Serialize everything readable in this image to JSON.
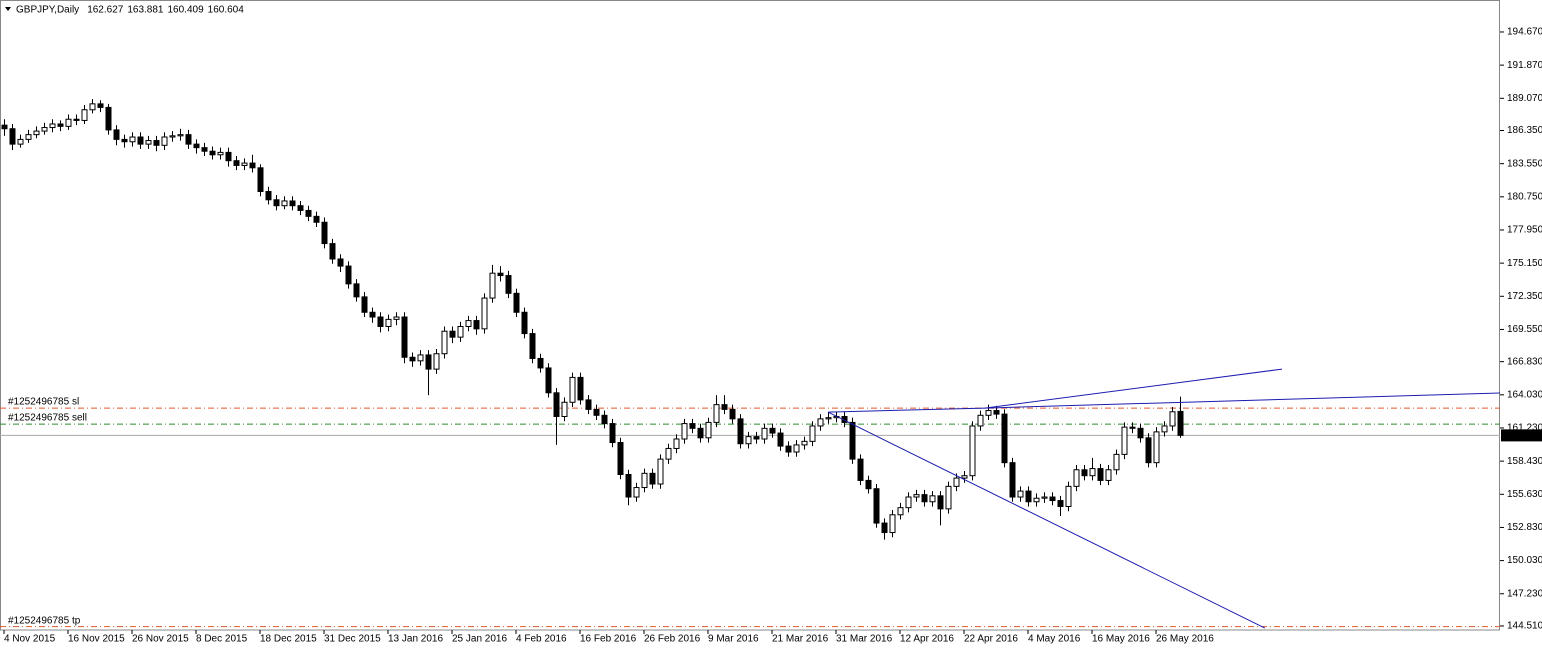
{
  "chart_data": {
    "type": "candlestick",
    "title": "GBPJPY,Daily",
    "color": "#000000",
    "ylim": [
      144.17,
      197.37
    ],
    "yticks": [
      {
        "value": 194.67,
        "label": "194.670"
      },
      {
        "value": 191.87,
        "label": "191.870"
      },
      {
        "value": 189.07,
        "label": "189.070"
      },
      {
        "value": 186.35,
        "label": "186.350"
      },
      {
        "value": 183.55,
        "label": "183.550"
      },
      {
        "value": 180.75,
        "label": "180.750"
      },
      {
        "value": 177.95,
        "label": "177.950"
      },
      {
        "value": 175.15,
        "label": "175.150"
      },
      {
        "value": 172.35,
        "label": "172.350"
      },
      {
        "value": 169.55,
        "label": "169.550"
      },
      {
        "value": 166.83,
        "label": "166.830"
      },
      {
        "value": 164.03,
        "label": "164.030"
      },
      {
        "value": 161.23,
        "label": "161.230"
      },
      {
        "value": 158.43,
        "label": "158.430"
      },
      {
        "value": 155.63,
        "label": "155.630"
      },
      {
        "value": 152.83,
        "label": "152.830"
      },
      {
        "value": 150.03,
        "label": "150.030"
      },
      {
        "value": 147.23,
        "label": "147.230"
      },
      {
        "value": 144.51,
        "label": "144.510"
      }
    ],
    "grid": false,
    "categories": [
      "4 Nov 2015",
      null,
      null,
      null,
      null,
      null,
      null,
      null,
      "16 Nov 2015",
      null,
      null,
      null,
      null,
      null,
      null,
      null,
      "26 Nov 2015",
      null,
      null,
      null,
      null,
      null,
      null,
      null,
      "8 Dec 2015",
      null,
      null,
      null,
      null,
      null,
      null,
      null,
      "18 Dec 2015",
      null,
      null,
      null,
      null,
      null,
      null,
      null,
      "31 Dec 2015",
      null,
      null,
      null,
      null,
      null,
      null,
      null,
      "13 Jan 2016",
      null,
      null,
      null,
      null,
      null,
      null,
      null,
      "25 Jan 2016",
      null,
      null,
      null,
      null,
      null,
      null,
      null,
      "4 Feb 2016",
      null,
      null,
      null,
      null,
      null,
      null,
      null,
      "16 Feb 2016",
      null,
      null,
      null,
      null,
      null,
      null,
      null,
      "26 Feb 2016",
      null,
      null,
      null,
      null,
      null,
      null,
      null,
      "9 Mar 2016",
      null,
      null,
      null,
      null,
      null,
      null,
      null,
      "21 Mar 2016",
      null,
      null,
      null,
      null,
      null,
      null,
      null,
      "31 Mar 2016",
      null,
      null,
      null,
      null,
      null,
      null,
      null,
      "12 Apr 2016",
      null,
      null,
      null,
      null,
      null,
      null,
      null,
      "22 Apr 2016",
      null,
      null,
      null,
      null,
      null,
      null,
      null,
      "4 May 2016",
      null,
      null,
      null,
      null,
      null,
      null,
      null,
      "16 May 2016",
      null,
      null,
      null,
      null,
      null,
      null,
      null,
      "26 May 2016",
      null,
      null,
      null
    ],
    "open": [
      186.8,
      186.5,
      185.2,
      185.6,
      186.0,
      186.3,
      186.6,
      186.9,
      186.7,
      187.3,
      187.2,
      188.1,
      188.6,
      188.3,
      186.4,
      185.6,
      185.4,
      185.8,
      185.2,
      185.5,
      185.1,
      185.8,
      185.9,
      186.0,
      185.2,
      184.9,
      184.6,
      184.3,
      184.5,
      183.8,
      183.4,
      183.6,
      183.2,
      181.2,
      180.5,
      180.0,
      180.4,
      180.0,
      179.6,
      179.1,
      178.6,
      176.8,
      175.5,
      174.9,
      173.4,
      172.3,
      171.0,
      170.6,
      169.8,
      170.4,
      170.6,
      167.2,
      166.9,
      167.4,
      166.2,
      167.5,
      169.4,
      168.9,
      169.8,
      170.3,
      169.6,
      172.2,
      174.3,
      174.1,
      172.6,
      171.0,
      169.2,
      167.1,
      166.3,
      164.2,
      162.2,
      163.4,
      165.5,
      163.6,
      162.8,
      162.3,
      161.6,
      160.0,
      157.3,
      155.4,
      156.2,
      157.4,
      156.5,
      158.6,
      159.5,
      160.3,
      161.6,
      161.2,
      160.4,
      161.7,
      163.2,
      162.8,
      162.0,
      159.9,
      160.5,
      160.3,
      161.2,
      160.8,
      159.7,
      159.2,
      159.8,
      160.1,
      161.4,
      162.0,
      162.1,
      162.2,
      161.7,
      158.6,
      156.8,
      156.1,
      153.2,
      152.4,
      153.9,
      154.5,
      155.4,
      155.6,
      155.0,
      155.5,
      154.4,
      156.3,
      157.0,
      157.2,
      161.4,
      162.3,
      162.7,
      162.4,
      158.3,
      155.4,
      155.9,
      155.0,
      155.3,
      155.4,
      155.1,
      154.6,
      156.3,
      157.7,
      157.2,
      157.8,
      156.8,
      157.7,
      159.0,
      161.3,
      161.2,
      160.4,
      158.3,
      160.9,
      161.4,
      162.627
    ],
    "high": [
      187.3,
      186.9,
      186.0,
      186.4,
      186.7,
      187.0,
      187.3,
      187.2,
      187.7,
      187.7,
      188.5,
      189.0,
      188.9,
      188.6,
      186.8,
      186.0,
      186.2,
      186.2,
      185.9,
      185.9,
      186.2,
      186.3,
      186.5,
      186.4,
      185.6,
      185.3,
      185.0,
      184.9,
      184.9,
      184.2,
      184.0,
      184.3,
      183.5,
      181.6,
      180.9,
      180.8,
      180.8,
      180.4,
      180.0,
      179.5,
      179.0,
      177.2,
      175.9,
      175.3,
      173.8,
      172.7,
      171.4,
      171.0,
      170.8,
      171.0,
      171.0,
      167.6,
      167.8,
      167.8,
      167.9,
      169.8,
      169.8,
      170.2,
      170.7,
      170.7,
      172.6,
      175.0,
      174.9,
      174.5,
      173.0,
      171.4,
      169.6,
      167.5,
      166.7,
      164.6,
      163.8,
      165.9,
      165.9,
      164.0,
      163.2,
      162.7,
      162.0,
      160.4,
      157.7,
      156.6,
      157.8,
      157.8,
      159.0,
      159.9,
      160.7,
      162.0,
      162.0,
      161.6,
      162.1,
      164.0,
      164.0,
      163.2,
      162.4,
      160.9,
      160.9,
      161.6,
      161.6,
      161.2,
      160.1,
      160.2,
      160.5,
      161.8,
      162.4,
      162.6,
      162.6,
      162.6,
      162.1,
      159.0,
      157.2,
      156.5,
      153.6,
      154.3,
      154.9,
      155.8,
      156.0,
      156.0,
      155.9,
      155.9,
      156.7,
      157.4,
      157.6,
      161.8,
      162.7,
      163.2,
      163.1,
      162.8,
      158.7,
      156.3,
      156.3,
      155.7,
      155.8,
      155.8,
      155.5,
      156.7,
      158.1,
      158.1,
      158.7,
      158.2,
      158.1,
      159.4,
      161.7,
      161.7,
      161.6,
      160.8,
      161.3,
      161.8,
      163.0,
      163.881
    ],
    "low": [
      185.9,
      184.7,
      184.9,
      185.3,
      185.7,
      186.0,
      186.2,
      186.3,
      186.4,
      186.8,
      186.9,
      187.8,
      187.9,
      186.0,
      185.1,
      184.9,
      185.0,
      184.8,
      184.8,
      184.6,
      184.7,
      185.4,
      185.5,
      184.8,
      184.4,
      184.2,
      183.9,
      183.9,
      183.3,
      183.0,
      183.0,
      182.8,
      180.8,
      180.1,
      179.6,
      179.7,
      179.6,
      179.2,
      178.7,
      178.2,
      176.4,
      175.1,
      174.4,
      173.0,
      171.9,
      170.6,
      170.1,
      169.3,
      169.4,
      169.9,
      166.7,
      166.4,
      166.5,
      164.0,
      165.8,
      167.1,
      168.4,
      168.5,
      169.4,
      169.1,
      169.2,
      171.8,
      173.6,
      172.2,
      170.6,
      168.8,
      166.7,
      165.9,
      163.8,
      159.8,
      161.8,
      163.0,
      163.2,
      162.4,
      161.9,
      161.2,
      159.6,
      156.9,
      154.7,
      155.0,
      155.8,
      156.1,
      156.1,
      158.2,
      159.1,
      159.9,
      160.8,
      160.0,
      160.0,
      161.3,
      162.4,
      161.6,
      159.5,
      159.5,
      159.9,
      159.9,
      160.4,
      159.3,
      158.8,
      158.8,
      159.4,
      159.7,
      161.0,
      161.6,
      161.7,
      161.3,
      158.2,
      156.4,
      155.7,
      152.8,
      151.8,
      152.0,
      153.5,
      154.1,
      155.0,
      154.6,
      154.6,
      153.0,
      154.0,
      155.9,
      156.6,
      156.8,
      161.0,
      161.9,
      162.0,
      157.9,
      155.0,
      155.0,
      154.6,
      154.6,
      154.9,
      154.7,
      153.8,
      154.2,
      155.9,
      156.8,
      156.8,
      156.4,
      156.4,
      157.3,
      158.6,
      160.8,
      160.0,
      157.9,
      157.9,
      160.5,
      161.0,
      160.409
    ],
    "close": [
      186.5,
      185.2,
      185.6,
      186.0,
      186.3,
      186.6,
      186.9,
      186.7,
      187.3,
      187.2,
      188.1,
      188.6,
      188.3,
      186.4,
      185.6,
      185.4,
      185.8,
      185.2,
      185.5,
      185.1,
      185.8,
      185.9,
      186.0,
      185.2,
      184.9,
      184.6,
      184.3,
      184.5,
      183.8,
      183.4,
      183.6,
      183.2,
      181.2,
      180.5,
      180.0,
      180.4,
      180.0,
      179.6,
      179.1,
      178.6,
      176.8,
      175.5,
      174.9,
      173.4,
      172.3,
      171.0,
      170.6,
      169.8,
      170.4,
      170.6,
      167.2,
      166.9,
      167.4,
      166.2,
      167.5,
      169.4,
      168.9,
      169.8,
      170.3,
      169.6,
      172.2,
      174.3,
      174.1,
      172.6,
      171.0,
      169.2,
      167.1,
      166.3,
      164.2,
      162.2,
      163.4,
      165.5,
      163.6,
      162.8,
      162.3,
      161.6,
      160.0,
      157.3,
      155.4,
      156.2,
      157.4,
      156.5,
      158.6,
      159.5,
      160.3,
      161.6,
      161.2,
      160.4,
      161.7,
      163.2,
      162.8,
      162.0,
      159.9,
      160.5,
      160.3,
      161.2,
      160.8,
      159.7,
      159.2,
      159.8,
      160.1,
      161.4,
      162.0,
      162.1,
      162.2,
      161.7,
      158.6,
      156.8,
      156.1,
      153.2,
      152.4,
      153.9,
      154.5,
      155.4,
      155.6,
      155.0,
      155.5,
      154.4,
      156.3,
      157.0,
      157.2,
      161.4,
      162.3,
      162.7,
      162.4,
      158.3,
      155.4,
      155.9,
      155.0,
      155.3,
      155.4,
      155.1,
      154.6,
      156.3,
      157.7,
      157.2,
      157.8,
      156.8,
      157.7,
      159.0,
      161.3,
      161.2,
      160.4,
      158.3,
      160.9,
      161.4,
      162.6,
      160.604
    ],
    "orders": [
      {
        "label": "#1252496785 sl",
        "price": 162.91,
        "color": "#e2572b"
      },
      {
        "label": "#1252496785 sell",
        "price": 161.56,
        "color": "#2e8b2e"
      },
      {
        "label": "#1252496785 tp",
        "price": 144.45,
        "color": "#e2572b"
      }
    ],
    "trendline_color": "#1c1cb0",
    "trendlines": [
      {
        "x": [
          103,
          122.6
        ],
        "y": [
          162.57,
          162.91
        ]
      },
      {
        "x": [
          122.6,
          159.75
        ],
        "y": [
          162.91,
          166.2
        ]
      },
      {
        "x": [
          122.6,
          187
        ],
        "y": [
          162.91,
          164.18
        ]
      },
      {
        "x": [
          103,
          157.6
        ],
        "y": [
          162.57,
          144.33
        ]
      }
    ]
  }
}
